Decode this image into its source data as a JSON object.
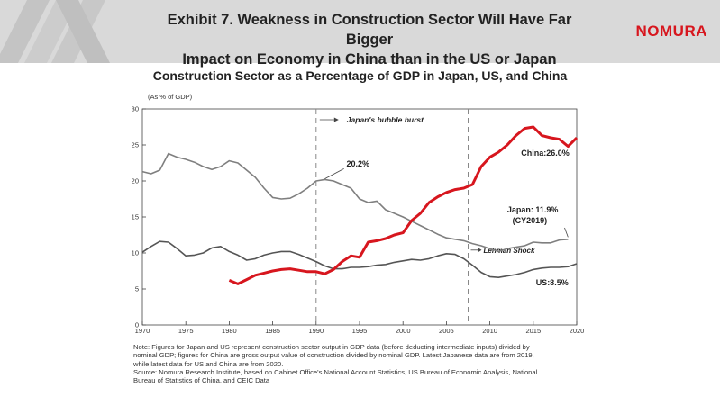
{
  "header": {
    "title_line1": "Exhibit 7. Weakness in Construction Sector Will Have Far Bigger",
    "title_line2": "Impact on Economy in China than in the US or Japan",
    "brand": "NOMURA",
    "brand_color": "#d7161e",
    "background": "#d9d9d9"
  },
  "chart_title": "Construction Sector as a Percentage of GDP in Japan, US, and China",
  "chart_data": {
    "type": "line",
    "title": "Construction Sector as a Percentage of GDP in Japan, US, and China",
    "ylabel": "(As % of GDP)",
    "xlabel": "",
    "xlim": [
      1970,
      2020
    ],
    "ylim": [
      0,
      30
    ],
    "x_ticks": [
      1970,
      1975,
      1980,
      1985,
      1990,
      1995,
      2000,
      2005,
      2010,
      2015,
      2020
    ],
    "y_ticks": [
      0,
      5,
      10,
      15,
      20,
      25,
      30
    ],
    "grid": false,
    "series": [
      {
        "name": "Japan",
        "color": "#7f7f7f",
        "points": [
          [
            1970,
            21.3
          ],
          [
            1971,
            21.0
          ],
          [
            1972,
            21.5
          ],
          [
            1973,
            23.8
          ],
          [
            1974,
            23.3
          ],
          [
            1975,
            23.0
          ],
          [
            1976,
            22.6
          ],
          [
            1977,
            22.0
          ],
          [
            1978,
            21.6
          ],
          [
            1979,
            22.0
          ],
          [
            1980,
            22.8
          ],
          [
            1981,
            22.5
          ],
          [
            1982,
            21.5
          ],
          [
            1983,
            20.5
          ],
          [
            1984,
            19.0
          ],
          [
            1985,
            17.7
          ],
          [
            1986,
            17.5
          ],
          [
            1987,
            17.6
          ],
          [
            1988,
            18.2
          ],
          [
            1989,
            19.0
          ],
          [
            1990,
            20.0
          ],
          [
            1991,
            20.2
          ],
          [
            1992,
            20.0
          ],
          [
            1993,
            19.5
          ],
          [
            1994,
            19.0
          ],
          [
            1995,
            17.5
          ],
          [
            1996,
            17.0
          ],
          [
            1997,
            17.2
          ],
          [
            1998,
            16.0
          ],
          [
            1999,
            15.5
          ],
          [
            2000,
            15.0
          ],
          [
            2001,
            14.4
          ],
          [
            2002,
            13.8
          ],
          [
            2003,
            13.2
          ],
          [
            2004,
            12.6
          ],
          [
            2005,
            12.1
          ],
          [
            2006,
            11.9
          ],
          [
            2007,
            11.7
          ],
          [
            2008,
            11.3
          ],
          [
            2009,
            11.0
          ],
          [
            2010,
            10.6
          ],
          [
            2011,
            10.2
          ],
          [
            2012,
            10.6
          ],
          [
            2013,
            10.8
          ],
          [
            2014,
            11.0
          ],
          [
            2015,
            11.5
          ],
          [
            2016,
            11.4
          ],
          [
            2017,
            11.4
          ],
          [
            2018,
            11.8
          ],
          [
            2019,
            11.9
          ]
        ]
      },
      {
        "name": "US",
        "color": "#555555",
        "points": [
          [
            1970,
            10.1
          ],
          [
            1971,
            10.9
          ],
          [
            1972,
            11.6
          ],
          [
            1973,
            11.5
          ],
          [
            1974,
            10.6
          ],
          [
            1975,
            9.6
          ],
          [
            1976,
            9.7
          ],
          [
            1977,
            10.0
          ],
          [
            1978,
            10.7
          ],
          [
            1979,
            10.9
          ],
          [
            1980,
            10.2
          ],
          [
            1981,
            9.7
          ],
          [
            1982,
            9.0
          ],
          [
            1983,
            9.2
          ],
          [
            1984,
            9.7
          ],
          [
            1985,
            10.0
          ],
          [
            1986,
            10.2
          ],
          [
            1987,
            10.2
          ],
          [
            1988,
            9.8
          ],
          [
            1989,
            9.3
          ],
          [
            1990,
            8.8
          ],
          [
            1991,
            8.2
          ],
          [
            1992,
            7.8
          ],
          [
            1993,
            7.8
          ],
          [
            1994,
            8.0
          ],
          [
            1995,
            8.0
          ],
          [
            1996,
            8.1
          ],
          [
            1997,
            8.3
          ],
          [
            1998,
            8.4
          ],
          [
            1999,
            8.7
          ],
          [
            2000,
            8.9
          ],
          [
            2001,
            9.1
          ],
          [
            2002,
            9.0
          ],
          [
            2003,
            9.2
          ],
          [
            2004,
            9.6
          ],
          [
            2005,
            9.9
          ],
          [
            2006,
            9.8
          ],
          [
            2007,
            9.2
          ],
          [
            2008,
            8.3
          ],
          [
            2009,
            7.3
          ],
          [
            2010,
            6.7
          ],
          [
            2011,
            6.6
          ],
          [
            2012,
            6.8
          ],
          [
            2013,
            7.0
          ],
          [
            2014,
            7.3
          ],
          [
            2015,
            7.7
          ],
          [
            2016,
            7.9
          ],
          [
            2017,
            8.0
          ],
          [
            2018,
            8.0
          ],
          [
            2019,
            8.1
          ],
          [
            2020,
            8.5
          ]
        ]
      },
      {
        "name": "China",
        "color": "#d7161e",
        "points": [
          [
            1980,
            6.2
          ],
          [
            1981,
            5.7
          ],
          [
            1982,
            6.3
          ],
          [
            1983,
            6.9
          ],
          [
            1984,
            7.2
          ],
          [
            1985,
            7.5
          ],
          [
            1986,
            7.7
          ],
          [
            1987,
            7.8
          ],
          [
            1988,
            7.6
          ],
          [
            1989,
            7.4
          ],
          [
            1990,
            7.4
          ],
          [
            1991,
            7.1
          ],
          [
            1992,
            7.7
          ],
          [
            1993,
            8.8
          ],
          [
            1994,
            9.6
          ],
          [
            1995,
            9.4
          ],
          [
            1996,
            11.5
          ],
          [
            1997,
            11.7
          ],
          [
            1998,
            12.0
          ],
          [
            1999,
            12.5
          ],
          [
            2000,
            12.8
          ],
          [
            2001,
            14.5
          ],
          [
            2002,
            15.5
          ],
          [
            2003,
            17.0
          ],
          [
            2004,
            17.8
          ],
          [
            2005,
            18.4
          ],
          [
            2006,
            18.8
          ],
          [
            2007,
            19.0
          ],
          [
            2008,
            19.5
          ],
          [
            2009,
            22.0
          ],
          [
            2010,
            23.3
          ],
          [
            2011,
            24.0
          ],
          [
            2012,
            25.0
          ],
          [
            2013,
            26.3
          ],
          [
            2014,
            27.3
          ],
          [
            2015,
            27.5
          ],
          [
            2016,
            26.3
          ],
          [
            2017,
            26.0
          ],
          [
            2018,
            25.8
          ],
          [
            2019,
            24.8
          ],
          [
            2020,
            26.0
          ]
        ]
      }
    ],
    "vlines": [
      {
        "x": 1990,
        "label": "Japan's bubble burst"
      },
      {
        "x": 2007.5,
        "label": "Lehman Shock"
      }
    ],
    "annotations": [
      {
        "text": "20.2%",
        "x": 1991,
        "y": 20.2
      },
      {
        "text": "China:26.0%",
        "x": 2020,
        "y": 26.0
      },
      {
        "text": "Japan: 11.9%",
        "x": 2019,
        "y": 11.9
      },
      {
        "text": "(CY2019)",
        "x": 2019,
        "y": 11.9
      },
      {
        "text": "US:8.5%",
        "x": 2020,
        "y": 8.5
      }
    ]
  },
  "notes": [
    "Note: Figures for Japan and US represent construction sector output in GDP data (before deducting intermediate inputs) divided by",
    "nominal GDP; figures for China are gross output value of construction divided by nominal GDP. Latest Japanese data are from 2019,",
    "while latest data for US and China are from 2020.",
    "Source: Nomura Research Institute, based on Cabinet Office's National Account Statistics, US Bureau of Economic Analysis, National",
    "Bureau of Statistics of China, and CEIC Data"
  ]
}
